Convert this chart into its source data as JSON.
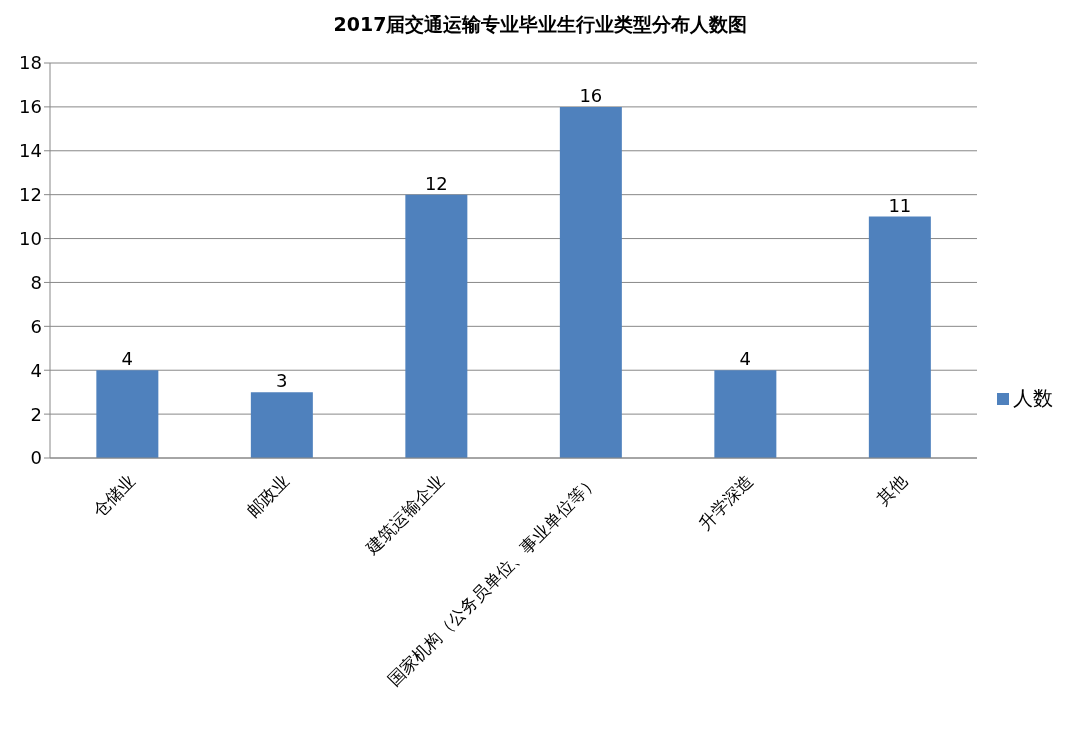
{
  "chart_data": {
    "type": "bar",
    "title": "2017届交通运输专业毕业生行业类型分布人数图",
    "categories": [
      "仓储业",
      "邮政业",
      "建筑运输企业",
      "国家机构（公务员单位、事业单位等）",
      "升学深造",
      "其他"
    ],
    "series": [
      {
        "name": "人数",
        "color": "#4f81bd",
        "values": [
          4,
          3,
          12,
          16,
          4,
          11
        ]
      }
    ],
    "ylim": [
      0,
      18
    ],
    "yticks": [
      0,
      2,
      4,
      6,
      8,
      10,
      12,
      14,
      16,
      18
    ],
    "grid": "y",
    "legend": "right",
    "data_labels": true
  }
}
